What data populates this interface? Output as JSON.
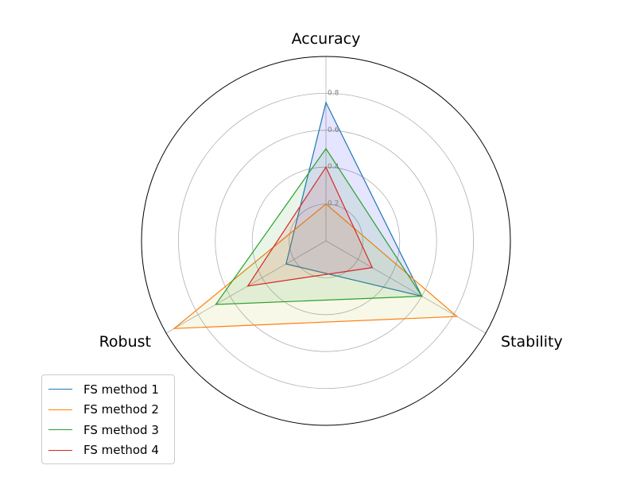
{
  "chart_data": {
    "type": "radar",
    "axes": [
      "Accuracy",
      "Stability",
      "Robust"
    ],
    "rticks": [
      "0.2",
      "0.4",
      "0.6",
      "0.8"
    ],
    "rlim": [
      0,
      1
    ],
    "grid": true,
    "legend_position": "bottom-left",
    "series": [
      {
        "name": "FS method 1",
        "values": [
          0.75,
          0.6,
          0.25
        ],
        "color": "#1f77b4",
        "fill": "#0000ff"
      },
      {
        "name": "FS method 2",
        "values": [
          0.2,
          0.82,
          0.95
        ],
        "color": "#ff7f0e",
        "fill": "#bcbd22"
      },
      {
        "name": "FS method 3",
        "values": [
          0.5,
          0.6,
          0.69
        ],
        "color": "#2ca02c",
        "fill": "#2ca02c"
      },
      {
        "name": "FS method 4",
        "values": [
          0.4,
          0.29,
          0.49
        ],
        "color": "#d62728",
        "fill": "#d62728"
      }
    ]
  }
}
